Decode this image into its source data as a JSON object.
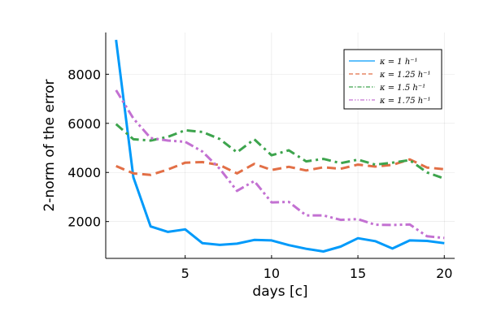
{
  "chart_data": {
    "type": "line",
    "xlabel": "days [c]",
    "ylabel": "2-norm of the error",
    "xlim": [
      0.4,
      20.6
    ],
    "ylim": [
      500,
      9700
    ],
    "xticks": [
      5,
      10,
      15,
      20
    ],
    "yticks": [
      2000,
      4000,
      6000,
      8000
    ],
    "grid": true,
    "legend_position": "top-right",
    "x": [
      1,
      2,
      3,
      4,
      5,
      6,
      7,
      8,
      9,
      10,
      11,
      12,
      13,
      14,
      15,
      16,
      17,
      18,
      19,
      20
    ],
    "series": [
      {
        "name": "κ = 1 h⁻¹",
        "color": "#009AFA",
        "dash": "solid",
        "values": [
          9400,
          3800,
          1800,
          1580,
          1680,
          1120,
          1050,
          1100,
          1250,
          1230,
          1040,
          890,
          780,
          980,
          1320,
          1200,
          900,
          1230,
          1210,
          1120
        ]
      },
      {
        "name": "κ = 1.25 h⁻¹",
        "color": "#E26F46",
        "dash": "dash",
        "values": [
          4260,
          3960,
          3900,
          4120,
          4400,
          4420,
          4300,
          3960,
          4350,
          4100,
          4230,
          4080,
          4210,
          4150,
          4320,
          4240,
          4310,
          4530,
          4200,
          4130
        ]
      },
      {
        "name": "κ = 1.5 h⁻¹",
        "color": "#3DA44D",
        "dash": "dashdot",
        "values": [
          5970,
          5350,
          5300,
          5450,
          5720,
          5650,
          5360,
          4820,
          5350,
          4700,
          4900,
          4450,
          4550,
          4380,
          4520,
          4320,
          4400,
          4500,
          4000,
          3750
        ]
      },
      {
        "name": "κ = 1.75 h⁻¹",
        "color": "#C371D2",
        "dash": "dashdotdot",
        "values": [
          7350,
          6200,
          5400,
          5300,
          5250,
          4850,
          4150,
          3250,
          3650,
          2780,
          2800,
          2250,
          2250,
          2070,
          2100,
          1870,
          1860,
          1880,
          1400,
          1330
        ]
      }
    ]
  }
}
